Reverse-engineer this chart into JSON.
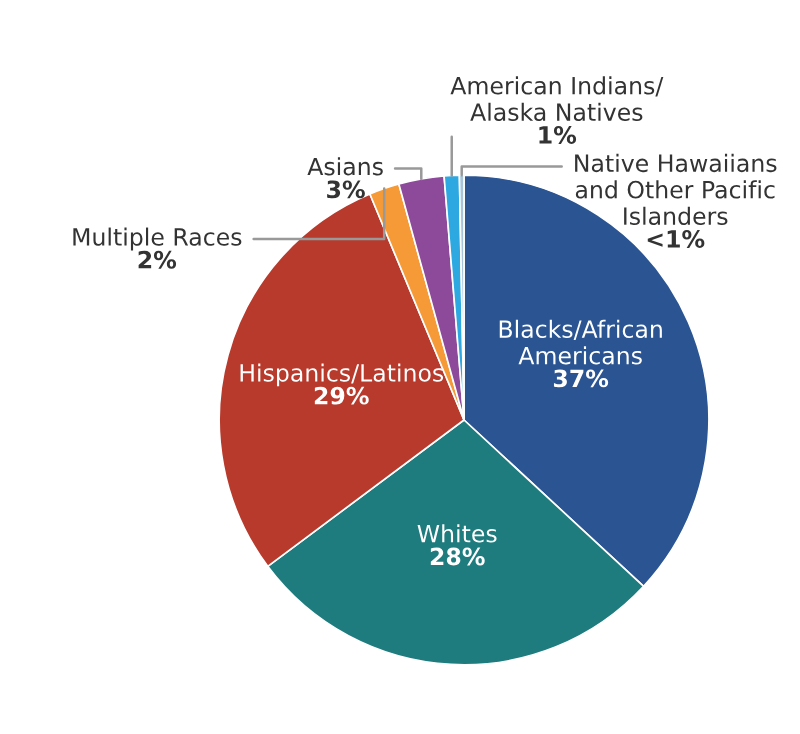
{
  "chart_data": {
    "type": "pie",
    "categories": [
      "Blacks/African\nAmericans",
      "Whites",
      "Hispanics/Latinos",
      "Multiple Races",
      "Asians",
      "American Indians/\nAlaska Natives",
      "Native Hawaiians\nand Other Pacific\nIslanders"
    ],
    "values": [
      37,
      28,
      29,
      2,
      3,
      1,
      0.3
    ],
    "value_labels": [
      "37%",
      "28%",
      "29%",
      "2%",
      "3%",
      "1%",
      "<1%"
    ],
    "colors": [
      "#2b5592",
      "#1e7b7e",
      "#b83a2c",
      "#f59a36",
      "#8e4a9a",
      "#2ea8e0",
      "#a9c6d8"
    ]
  }
}
